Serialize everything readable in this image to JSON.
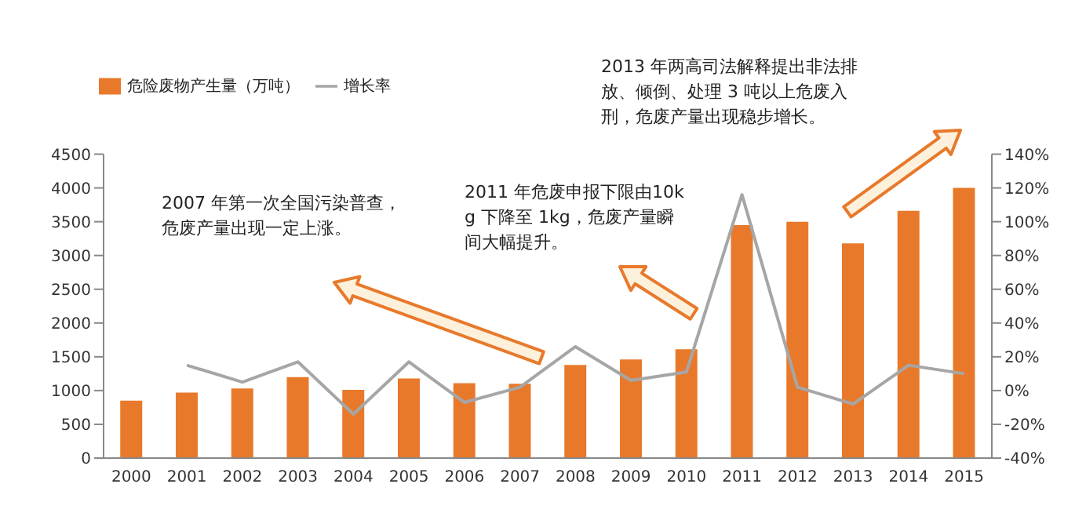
{
  "chart_data": {
    "type": "bar",
    "categories": [
      "2000",
      "2001",
      "2002",
      "2003",
      "2004",
      "2005",
      "2006",
      "2007",
      "2008",
      "2009",
      "2010",
      "2011",
      "2012",
      "2013",
      "2014",
      "2015"
    ],
    "series": [
      {
        "name": "危险废物产生量（万吨）",
        "color": "#e8792b",
        "values": [
          850,
          970,
          1030,
          1200,
          1010,
          1180,
          1110,
          1100,
          1380,
          1460,
          1610,
          3450,
          3500,
          3180,
          3660,
          4000
        ]
      },
      {
        "name": "增长率",
        "type": "line",
        "axis": "y2",
        "color": "#a6a6a6",
        "values": [
          null,
          15,
          5,
          17,
          -14,
          17,
          -7,
          2,
          26,
          6,
          11,
          116,
          2,
          -8,
          15,
          10
        ]
      }
    ],
    "ylim": [
      0,
      4500
    ],
    "yticks": [
      0,
      500,
      1000,
      1500,
      2000,
      2500,
      3000,
      3500,
      4000,
      4500
    ],
    "y2lim": [
      -40,
      140
    ],
    "y2ticks": [
      {
        "value": -40,
        "label": "-40%"
      },
      {
        "value": -20,
        "label": "-20%"
      },
      {
        "value": 0,
        "label": "0%"
      },
      {
        "value": 20,
        "label": "20%"
      },
      {
        "value": 40,
        "label": "40%"
      },
      {
        "value": 60,
        "label": "60%"
      },
      {
        "value": 80,
        "label": "80%"
      },
      {
        "value": 100,
        "label": "100%"
      },
      {
        "value": 120,
        "label": "120%"
      },
      {
        "value": 140,
        "label": "140%"
      }
    ],
    "legend": "top left",
    "grid": false,
    "marker": "none",
    "line_style": "solid",
    "annotations": [
      "2007 年第一次全国污染普查，危废产量出现一定上涨。",
      "2011 年危废申报下限由10kg 下降至 1kg，危废产量瞬间大幅提升。",
      "2013 年两高司法解释提出非法排放、倾倒、处理 3 吨以上危废入刑，危废产量出现稳步增长。"
    ]
  }
}
